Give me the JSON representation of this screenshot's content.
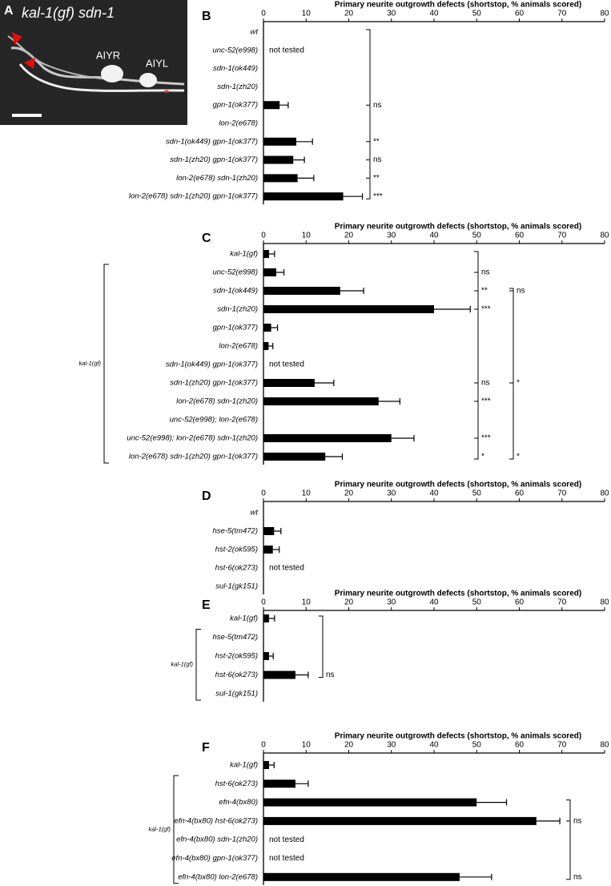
{
  "image_panel": {
    "letter": "A",
    "title": "kal-1(gf) sdn-1",
    "cell_labels": [
      "AIYR",
      "AIYL"
    ],
    "marker": "*"
  },
  "chart_data": [
    {
      "type": "bar",
      "panel": "B",
      "xlabel": "Primary neurite outgrowth defects (shortstop, % animals scored)",
      "categories": [
        "wt",
        "unc-52(e998)",
        "sdn-1(ok449)",
        "sdn-1(zh20)",
        "gpn-1(ok377)",
        "lon-2(e678)",
        "sdn-1(ok449) gpn-1(ok377)",
        "sdn-1(zh20) gpn-1(ok377)",
        "lon-2(e678) sdn-1(zh20)",
        "lon-2(e678) sdn-1(zh20) gpn-1(ok377)"
      ],
      "values": [
        0,
        null,
        0,
        0,
        3.8,
        0,
        7.7,
        7,
        8,
        18.7
      ],
      "errors": [
        0,
        null,
        0,
        0,
        2,
        0,
        3.8,
        2.6,
        3.8,
        4.5
      ],
      "notes": [
        null,
        "not tested",
        null,
        null,
        null,
        null,
        null,
        null,
        null,
        null
      ],
      "significance": [
        null,
        null,
        null,
        null,
        "ns",
        null,
        "**",
        "ns",
        "**",
        "***"
      ],
      "xlim": [
        0,
        80
      ],
      "xticks": [
        0,
        10,
        20,
        30,
        40,
        50,
        60,
        70,
        80
      ],
      "color": "#000000"
    },
    {
      "type": "bar",
      "panel": "C",
      "xlabel": "Primary neurite outgrowth defects (shortstop, % animals scored)",
      "group_label": "kal-1(gf)",
      "categories": [
        "kal-1(gf)",
        "unc-52(e998)",
        "sdn-1(ok449)",
        "sdn-1(zh20)",
        "gpn-1(ok377)",
        "lon-2(e678)",
        "sdn-1(ok449) gpn-1(ok377)",
        "sdn-1(zh20) gpn-1(ok377)",
        "lon-2(e678) sdn-1(zh20)",
        "unc-52(e998); lon-2(e678)",
        "unc-52(e998); lon-2(e678) sdn-1(zh20)",
        "lon-2(e678) sdn-1(zh20) gpn-1(ok377)"
      ],
      "values": [
        1.3,
        3,
        18,
        40,
        1.8,
        1.2,
        null,
        12,
        27,
        0,
        30,
        14.5
      ],
      "errors": [
        1.3,
        1.8,
        5.5,
        8.5,
        1.5,
        1,
        null,
        4.5,
        5,
        0,
        5.3,
        4
      ],
      "notes": [
        null,
        null,
        null,
        null,
        null,
        null,
        "not tested",
        null,
        null,
        null,
        null,
        null
      ],
      "significance": [
        null,
        "ns",
        "**",
        "***",
        null,
        null,
        null,
        "ns",
        "***",
        null,
        "***",
        "*"
      ],
      "significance_2": [
        null,
        null,
        "ns",
        null,
        null,
        null,
        null,
        "*",
        null,
        null,
        null,
        "*"
      ],
      "xlim": [
        0,
        80
      ],
      "xticks": [
        0,
        10,
        20,
        30,
        40,
        50,
        60,
        70,
        80
      ],
      "color": "#000000"
    },
    {
      "type": "bar",
      "panel": "D",
      "xlabel": "Primary neurite outgrowth defects (shortstop, % animals scored)",
      "categories": [
        "wt",
        "hse-5(tm472)",
        "hst-2(ok595)",
        "hst-6(ok273)",
        "sul-1(gk151)"
      ],
      "values": [
        0,
        2.5,
        2.2,
        null,
        0
      ],
      "errors": [
        0,
        1.6,
        1.5,
        null,
        0
      ],
      "notes": [
        null,
        null,
        null,
        "not tested",
        null
      ],
      "xlim": [
        0,
        80
      ],
      "xticks": [
        0,
        10,
        20,
        30,
        40,
        50,
        60,
        70,
        80
      ],
      "color": "#000000"
    },
    {
      "type": "bar",
      "panel": "E",
      "xlabel": "Primary neurite outgrowth defects (shortstop, % animals scored)",
      "group_label": "kal-1(gf)",
      "categories": [
        "kal-1(gf)",
        "hse-5(tm472)",
        "hst-2(ok595)",
        "hst-6(ok273)",
        "sul-1(gk151)"
      ],
      "values": [
        1.3,
        0,
        1.3,
        7.5,
        0
      ],
      "errors": [
        1.3,
        0,
        1,
        3,
        0
      ],
      "significance": [
        null,
        null,
        null,
        "ns",
        null
      ],
      "xlim": [
        0,
        80
      ],
      "xticks": [
        0,
        10,
        20,
        30,
        40,
        50,
        60,
        70,
        80
      ],
      "color": "#000000"
    },
    {
      "type": "bar",
      "panel": "F",
      "xlabel": "Primary neurite outgrowth defects (shortstop, % animals scored)",
      "group_label": "kal-1(gf)",
      "categories": [
        "kal-1(gf)",
        "hst-6(ok273)",
        "efn-4(bx80)",
        "efn-4(bx80) hst-6(ok273)",
        "efn-4(bx80) sdn-1(zh20)",
        "efn-4(bx80) gpn-1(ok377)",
        "efn-4(bx80) lon-2(e678)"
      ],
      "values": [
        1.3,
        7.5,
        50,
        64,
        null,
        null,
        46
      ],
      "errors": [
        1.2,
        3,
        7,
        5.5,
        null,
        null,
        7.5
      ],
      "notes": [
        null,
        null,
        null,
        null,
        "not tested",
        "not tested",
        null
      ],
      "significance": [
        null,
        null,
        null,
        "ns",
        null,
        null,
        "ns"
      ],
      "xlim": [
        0,
        80
      ],
      "xticks": [
        0,
        10,
        20,
        30,
        40,
        50,
        60,
        70,
        80
      ],
      "color": "#000000"
    }
  ]
}
